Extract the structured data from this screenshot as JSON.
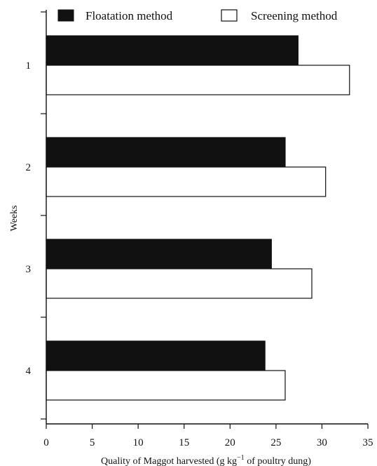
{
  "chart_data": {
    "type": "bar",
    "orientation": "horizontal",
    "title": "",
    "xlabel_main": "Quality of Maggot harvested (g kg",
    "xlabel_sup": "−1",
    "xlabel_tail": " of poultry dung)",
    "ylabel": "Weeks",
    "categories": [
      "1",
      "2",
      "3",
      "4"
    ],
    "xlim": [
      0,
      35
    ],
    "xticks": [
      0,
      5,
      10,
      15,
      20,
      25,
      30,
      35
    ],
    "grid": false,
    "legend_position": "top",
    "series": [
      {
        "name": "Floatation method",
        "values": [
          27.4,
          26.0,
          24.5,
          23.8
        ],
        "fill": "#111111"
      },
      {
        "name": "Screening method",
        "values": [
          33.0,
          30.4,
          28.9,
          26.0
        ],
        "fill": "#ffffff"
      }
    ]
  }
}
